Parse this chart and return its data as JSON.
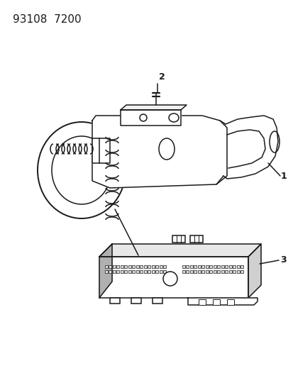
{
  "title": "93108  7200",
  "title_fontsize": 11,
  "bg_color": "#ffffff",
  "line_color": "#1a1a1a",
  "label1": "1",
  "label2": "2",
  "label3": "3"
}
